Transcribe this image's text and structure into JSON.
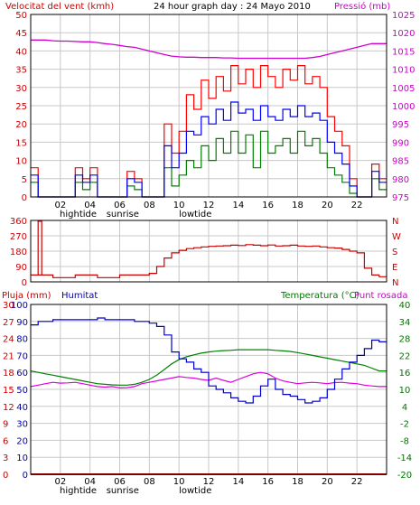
{
  "colors": {
    "wind_avg": "#0000ff",
    "wind_gust": "#ff0000",
    "wind_min": "#008000",
    "pressure": "#d000d0",
    "direction": "#cc0000",
    "humidity": "#0000cc",
    "temperature": "#008000",
    "dewpoint": "#e000e0",
    "rain": "#ff0000",
    "grid": "#c8c8c8",
    "panel_bg": "#ffffff",
    "frame": "#000000",
    "axis_red": "#cc0000",
    "axis_magenta": "#cc00cc",
    "axis_blue": "#0000aa",
    "axis_green": "#007700"
  },
  "title": "24 hour graph day : 24 Mayo 2010",
  "x_axis": {
    "ticks": [
      "02",
      "04",
      "06",
      "08",
      "10",
      "12",
      "14",
      "16",
      "18",
      "20",
      "22"
    ],
    "last_tick": "",
    "event_labels": [
      "hightide",
      "sunrise",
      "lowtide"
    ]
  },
  "chart_data": [
    {
      "type": "line",
      "name": "wind_and_pressure",
      "left_label": "Velocitat del vent (kmh)",
      "right_label": "Pressió (mb)",
      "left_ticks": [
        "50",
        "45",
        "40",
        "35",
        "30",
        "25",
        "20",
        "15",
        "10",
        "5",
        "0"
      ],
      "right_ticks": [
        "1025",
        "1020",
        "1015",
        "1010",
        "1005",
        "1000",
        "995",
        "990",
        "985",
        "980",
        "975"
      ],
      "ylim_left": [
        0,
        50
      ],
      "ylim_right": [
        975,
        1025
      ],
      "x": [
        0,
        0.5,
        1,
        1.5,
        2,
        2.5,
        3,
        3.5,
        4,
        4.5,
        5,
        5.5,
        6,
        6.5,
        7,
        7.5,
        8,
        8.5,
        9,
        9.5,
        10,
        10.5,
        11,
        11.5,
        12,
        12.5,
        13,
        13.5,
        14,
        14.5,
        15,
        15.5,
        16,
        16.5,
        17,
        17.5,
        18,
        18.5,
        19,
        19.5,
        20,
        20.5,
        21,
        21.5,
        22,
        22.5,
        23,
        23.5
      ],
      "series": [
        {
          "key": "gust",
          "values": [
            8,
            0,
            0,
            0,
            0,
            0,
            8,
            5,
            8,
            0,
            0,
            0,
            0,
            7,
            5,
            0,
            0,
            0,
            20,
            12,
            18,
            28,
            24,
            32,
            27,
            33,
            29,
            36,
            31,
            35,
            30,
            36,
            33,
            30,
            35,
            32,
            36,
            31,
            33,
            30,
            22,
            18,
            14,
            5,
            0,
            0,
            9,
            5
          ]
        },
        {
          "key": "avg",
          "values": [
            6,
            0,
            0,
            0,
            0,
            0,
            6,
            4,
            6,
            0,
            0,
            0,
            0,
            5,
            4,
            0,
            0,
            0,
            14,
            8,
            12,
            18,
            17,
            22,
            20,
            24,
            21,
            26,
            23,
            24,
            21,
            25,
            22,
            21,
            24,
            22,
            25,
            22,
            23,
            21,
            15,
            12,
            9,
            3,
            0,
            0,
            7,
            4
          ]
        },
        {
          "key": "min",
          "values": [
            4,
            0,
            0,
            0,
            0,
            0,
            4,
            2,
            4,
            0,
            0,
            0,
            0,
            3,
            2,
            0,
            0,
            0,
            8,
            3,
            6,
            10,
            8,
            14,
            10,
            16,
            12,
            18,
            12,
            17,
            8,
            18,
            12,
            14,
            16,
            12,
            18,
            14,
            16,
            12,
            8,
            6,
            4,
            1,
            0,
            0,
            5,
            2
          ]
        },
        {
          "key": "pressure",
          "values": [
            1018,
            1018,
            1018,
            1017.8,
            1017.7,
            1017.7,
            1017.6,
            1017.5,
            1017.5,
            1017.3,
            1017,
            1016.8,
            1016.5,
            1016.2,
            1016,
            1015.5,
            1015,
            1014.5,
            1014,
            1013.6,
            1013.4,
            1013.3,
            1013.3,
            1013.2,
            1013.2,
            1013.2,
            1013.1,
            1013.1,
            1013,
            1013,
            1013,
            1013,
            1013,
            1013,
            1013,
            1013,
            1013,
            1013,
            1013.2,
            1013.5,
            1014,
            1014.5,
            1015,
            1015.5,
            1016,
            1016.5,
            1017,
            1017
          ]
        }
      ]
    },
    {
      "type": "line",
      "name": "wind_direction",
      "left_ticks": [
        "360",
        "270",
        "180",
        "90",
        "0"
      ],
      "right_ticks": [
        "N",
        "W",
        "S",
        "E",
        "N"
      ],
      "ylim": [
        0,
        360
      ],
      "x": [
        0,
        0.5,
        1,
        1.5,
        2,
        2.5,
        3,
        3.5,
        4,
        4.5,
        5,
        5.5,
        6,
        6.5,
        7,
        7.5,
        8,
        8.5,
        9,
        9.5,
        10,
        10.5,
        11,
        11.5,
        12,
        12.5,
        13,
        13.5,
        14,
        14.5,
        15,
        15.5,
        16,
        16.5,
        17,
        17.5,
        18,
        18.5,
        19,
        19.5,
        20,
        20.5,
        21,
        21.5,
        22,
        22.5,
        23,
        23.5
      ],
      "values": [
        40,
        40,
        40,
        25,
        25,
        25,
        40,
        40,
        40,
        25,
        25,
        25,
        40,
        40,
        40,
        40,
        50,
        90,
        140,
        170,
        185,
        195,
        200,
        205,
        208,
        210,
        212,
        215,
        213,
        218,
        215,
        212,
        216,
        210,
        212,
        215,
        210,
        208,
        210,
        205,
        200,
        198,
        190,
        180,
        170,
        80,
        40,
        30
      ],
      "spike": {
        "x": 0.5,
        "value": 355
      }
    },
    {
      "type": "line",
      "name": "humidity_temperature",
      "left_labels": [
        "Pluja (mm)",
        "Humitat"
      ],
      "right_labels": [
        "Temperatura (°C)",
        "Punt rosada"
      ],
      "left_ticks_rain": [
        "30",
        "27",
        "24",
        "21",
        "18",
        "15",
        "12",
        "9",
        "6",
        "3",
        "0"
      ],
      "left_ticks_hum": [
        "100",
        "90",
        "80",
        "70",
        "60",
        "50",
        "40",
        "30",
        "20",
        "10",
        "0"
      ],
      "right_ticks": [
        "40",
        "34",
        "28",
        "22",
        "16",
        "10",
        "4",
        "-2",
        "-8",
        "-14",
        "-20"
      ],
      "ylim_hum": [
        0,
        100
      ],
      "ylim_temp": [
        -20,
        40
      ],
      "ylim_rain": [
        0,
        30
      ],
      "x": [
        0,
        0.5,
        1,
        1.5,
        2,
        2.5,
        3,
        3.5,
        4,
        4.5,
        5,
        5.5,
        6,
        6.5,
        7,
        7.5,
        8,
        8.5,
        9,
        9.5,
        10,
        10.5,
        11,
        11.5,
        12,
        12.5,
        13,
        13.5,
        14,
        14.5,
        15,
        15.5,
        16,
        16.5,
        17,
        17.5,
        18,
        18.5,
        19,
        19.5,
        20,
        20.5,
        21,
        21.5,
        22,
        22.5,
        23,
        23.5
      ],
      "series": [
        {
          "key": "humidity",
          "values": [
            88,
            90,
            90,
            91,
            91,
            91,
            91,
            91,
            91,
            92,
            91,
            91,
            91,
            91,
            90,
            90,
            89,
            87,
            82,
            72,
            68,
            66,
            62,
            60,
            52,
            50,
            48,
            45,
            43,
            42,
            46,
            52,
            56,
            50,
            47,
            46,
            44,
            42,
            43,
            45,
            50,
            56,
            62,
            66,
            70,
            74,
            79,
            78
          ]
        },
        {
          "key": "temperature",
          "values": [
            16.5,
            16,
            15.5,
            15,
            14.5,
            14,
            13.5,
            13,
            12.5,
            12,
            11.8,
            11.6,
            11.5,
            11.5,
            11.8,
            12.5,
            13.5,
            15,
            17,
            19,
            20.5,
            21.5,
            22.2,
            22.8,
            23.2,
            23.5,
            23.7,
            23.8,
            24,
            24,
            24,
            24,
            24,
            23.8,
            23.6,
            23.4,
            23,
            22.5,
            22,
            21.5,
            21,
            20.5,
            20,
            19.5,
            19,
            18.5,
            17.5,
            16.5
          ]
        },
        {
          "key": "dewpoint",
          "values": [
            11,
            11.5,
            12,
            12.5,
            12.2,
            12.3,
            12.5,
            12,
            11.5,
            11,
            10.8,
            11,
            10.5,
            10.6,
            11,
            12,
            12.5,
            13,
            13.5,
            14,
            14.5,
            14.2,
            14,
            13.5,
            13.2,
            14,
            13.2,
            12.5,
            13.5,
            14.5,
            15.5,
            16,
            15.5,
            14,
            13,
            12.5,
            12,
            12.3,
            12.5,
            12.3,
            12,
            12.4,
            12.5,
            12.2,
            12,
            11.5,
            11.2,
            11
          ]
        },
        {
          "key": "rain",
          "values": [
            0,
            0,
            0,
            0,
            0,
            0,
            0,
            0,
            0,
            0,
            0,
            0,
            0,
            0,
            0,
            0,
            0,
            0,
            0,
            0,
            0,
            0,
            0,
            0,
            0,
            0,
            0,
            0,
            0,
            0,
            0,
            0,
            0,
            0,
            0,
            0,
            0,
            0,
            0,
            0,
            0,
            0,
            0,
            0,
            0,
            0,
            0,
            0
          ]
        }
      ]
    }
  ]
}
